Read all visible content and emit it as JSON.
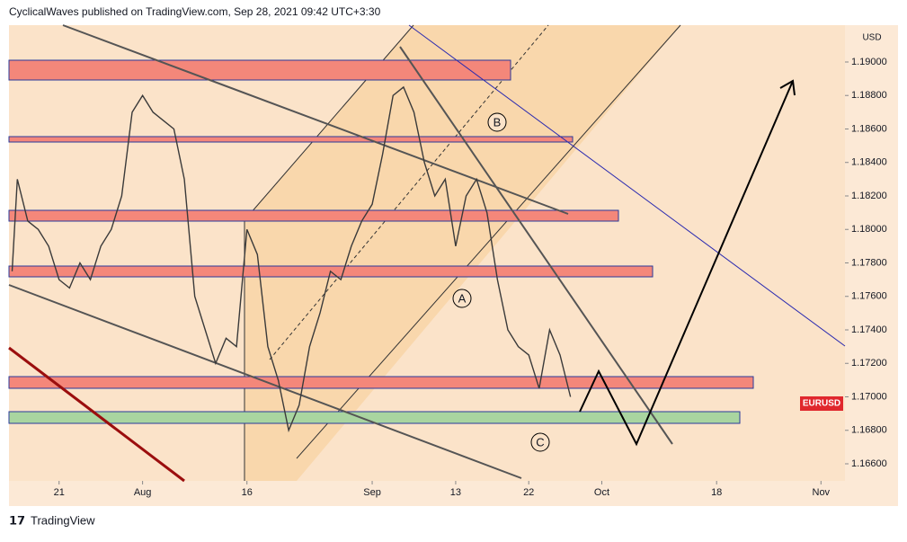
{
  "chart_data": {
    "type": "line",
    "title": "CyclicalWaves published on TradingView.com, Sep 28, 2021 09:42 UTC+3:30",
    "symbol": "EURUSD",
    "currency": "USD",
    "footer": "TradingView",
    "annotations": [
      "A",
      "B",
      "C"
    ],
    "x": [
      -4.5,
      -4,
      -3,
      -2,
      -1,
      0,
      1,
      2,
      3,
      4,
      5,
      6,
      7,
      8,
      9,
      10,
      11,
      12,
      13,
      14,
      15,
      16,
      17,
      18,
      19,
      20,
      21,
      22,
      23,
      24,
      25,
      26,
      27,
      28,
      29,
      30,
      31,
      32,
      33,
      34,
      35,
      36,
      37,
      38,
      39,
      40,
      41,
      42,
      43,
      44,
      45,
      46,
      47,
      48,
      49
    ],
    "series": [
      {
        "name": "EURUSD",
        "color": "#3a3a3a",
        "values": [
          1.1775,
          1.183,
          1.1805,
          1.18,
          1.179,
          1.177,
          1.1765,
          1.178,
          1.177,
          1.179,
          1.18,
          1.182,
          1.187,
          1.188,
          1.187,
          1.1865,
          1.186,
          1.183,
          1.176,
          1.174,
          1.172,
          1.1735,
          1.173,
          1.18,
          1.1785,
          1.173,
          1.171,
          1.168,
          1.1695,
          1.173,
          1.175,
          1.1775,
          1.177,
          1.179,
          1.1805,
          1.1815,
          1.1845,
          1.188,
          1.1885,
          1.187,
          1.184,
          1.182,
          1.183,
          1.179,
          1.182,
          1.183,
          1.181,
          1.177,
          1.174,
          1.173,
          1.1725,
          1.1705,
          1.174,
          1.1725,
          1.17
        ]
      }
    ],
    "xlim": [
      -4.8,
      75.3
    ],
    "xticks": [
      {
        "value": 0,
        "label": "21"
      },
      {
        "value": 8,
        "label": "Aug"
      },
      {
        "value": 18,
        "label": "16"
      },
      {
        "value": 30,
        "label": "Sep"
      },
      {
        "value": 38,
        "label": "13"
      },
      {
        "value": 45,
        "label": "22"
      },
      {
        "value": 52,
        "label": "Oct"
      },
      {
        "value": 63,
        "label": "18"
      },
      {
        "value": 73,
        "label": "Nov"
      }
    ],
    "ylim": [
      1.16498,
      1.1922
    ],
    "yticks": [
      {
        "value": 1.166,
        "label": "1.16600"
      },
      {
        "value": 1.168,
        "label": "1.16800"
      },
      {
        "value": 1.17,
        "label": "1.17000"
      },
      {
        "value": 1.172,
        "label": "1.17200"
      },
      {
        "value": 1.174,
        "label": "1.17400"
      },
      {
        "value": 1.176,
        "label": "1.17600"
      },
      {
        "value": 1.178,
        "label": "1.17800"
      },
      {
        "value": 1.18,
        "label": "1.18000"
      },
      {
        "value": 1.182,
        "label": "1.18200"
      },
      {
        "value": 1.184,
        "label": "1.18400"
      },
      {
        "value": 1.186,
        "label": "1.18600"
      },
      {
        "value": 1.188,
        "label": "1.18800"
      },
      {
        "value": 1.19,
        "label": "1.19000"
      }
    ]
  }
}
